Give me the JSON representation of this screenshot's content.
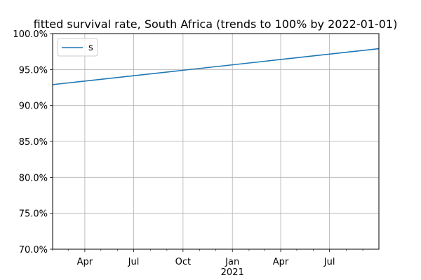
{
  "chart_data": {
    "type": "line",
    "title": "fitted survival rate, South Africa (trends to 100% by 2022-01-01)",
    "xlabel": "",
    "ylabel": "",
    "x_range": [
      "2020-02-01",
      "2021-10-01"
    ],
    "ylim": [
      70.0,
      100.0
    ],
    "y_ticks": [
      70.0,
      75.0,
      80.0,
      85.0,
      90.0,
      95.0,
      100.0
    ],
    "y_tick_labels": [
      "70.0%",
      "75.0%",
      "80.0%",
      "85.0%",
      "90.0%",
      "95.0%",
      "100.0%"
    ],
    "x_major_ticks": [
      {
        "date": "2020-04-01",
        "label": "Apr"
      },
      {
        "date": "2020-07-01",
        "label": "Jul"
      },
      {
        "date": "2020-10-01",
        "label": "Oct"
      },
      {
        "date": "2021-01-01",
        "label": "Jan"
      },
      {
        "date": "2021-04-01",
        "label": "Apr"
      },
      {
        "date": "2021-07-01",
        "label": "Jul"
      }
    ],
    "x_year_label": "2021",
    "x_minor_ticks": [
      "2020-02-01",
      "2020-03-01",
      "2020-05-01",
      "2020-06-01",
      "2020-08-01",
      "2020-09-01",
      "2020-11-01",
      "2020-12-01",
      "2021-02-01",
      "2021-03-01",
      "2021-05-01",
      "2021-06-01",
      "2021-08-01",
      "2021-09-01"
    ],
    "grid": true,
    "legend_position": "top-left",
    "series": [
      {
        "name": "s",
        "color": "#1f77b4",
        "points": [
          {
            "x": "2020-02-01",
            "y": 92.9
          },
          {
            "x": "2021-10-01",
            "y": 97.9
          }
        ]
      }
    ]
  }
}
